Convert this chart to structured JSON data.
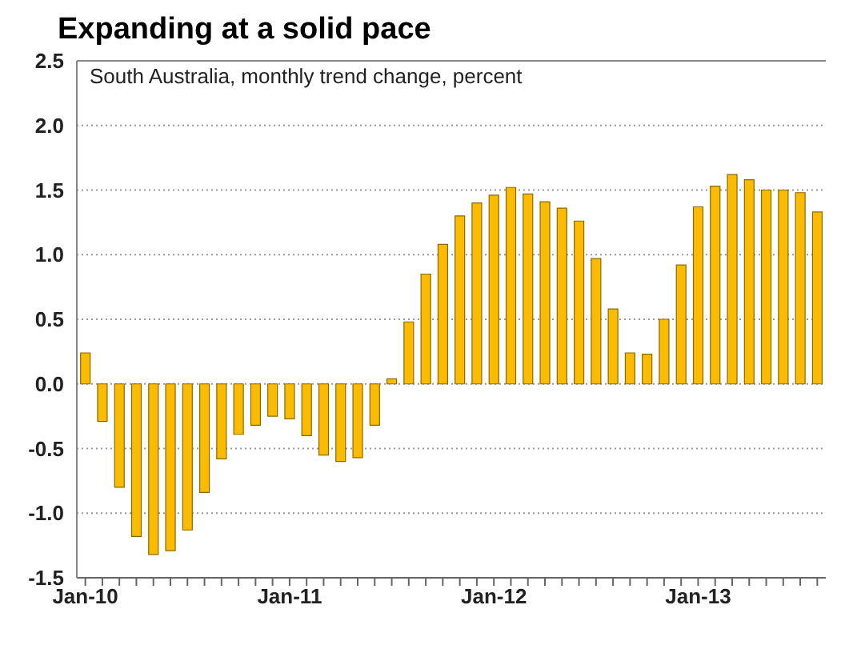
{
  "chart_data": {
    "type": "bar",
    "title": "Expanding at a solid pace",
    "subtitle": "South Australia, monthly trend change, percent",
    "categories": [
      "Jan-10",
      null,
      null,
      null,
      null,
      null,
      null,
      null,
      null,
      null,
      null,
      null,
      "Jan-11",
      null,
      null,
      null,
      null,
      null,
      null,
      null,
      null,
      null,
      null,
      null,
      "Jan-12",
      null,
      null,
      null,
      null,
      null,
      null,
      null,
      null,
      null,
      null,
      null,
      "Jan-13",
      null,
      null,
      null,
      null,
      null,
      null,
      null
    ],
    "series": [
      {
        "color": "#fbbb00",
        "values": [
          0.24,
          -0.29,
          -0.8,
          -1.18,
          -1.32,
          -1.29,
          -1.13,
          -0.84,
          -0.58,
          -0.39,
          -0.32,
          -0.25,
          -0.27,
          -0.4,
          -0.55,
          -0.6,
          -0.57,
          -0.32,
          0.04,
          0.48,
          0.85,
          1.08,
          1.3,
          1.4,
          1.46,
          1.52,
          1.47,
          1.41,
          1.36,
          1.26,
          0.97,
          0.58,
          0.24,
          0.23,
          0.5,
          0.92,
          1.37,
          1.53,
          1.62,
          1.58,
          1.5,
          1.5,
          1.48,
          1.33
        ]
      }
    ],
    "ylim": [
      -1.5,
      2.5
    ],
    "yticks": [
      {
        "value": -1.5,
        "label": "-1.5"
      },
      {
        "value": -1,
        "label": "-1.0"
      },
      {
        "value": -0.5,
        "label": "-0.5"
      },
      {
        "value": 0,
        "label": "0.0"
      },
      {
        "value": 0.5,
        "label": "0.5"
      },
      {
        "value": 1,
        "label": "1.0"
      },
      {
        "value": 1.5,
        "label": "1.5"
      },
      {
        "value": 2,
        "label": "2.0"
      },
      {
        "value": 2.5,
        "label": "2.5"
      }
    ],
    "grid": "y"
  }
}
